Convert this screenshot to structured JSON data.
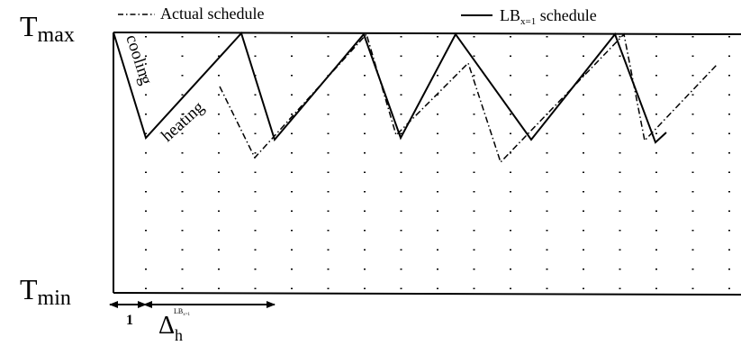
{
  "labels": {
    "t_max": "T",
    "t_max_sub": "max",
    "t_min": "T",
    "t_min_sub": "min",
    "cooling": "cooling",
    "heating": "heating",
    "one": "1",
    "delta": "Δ",
    "delta_sub": "h",
    "delta_sup": "LB",
    "delta_sup_sub": "x=1"
  },
  "legend": {
    "actual": "Actual schedule",
    "lb_prefix": "LB",
    "lb_sub": "x=1",
    "lb_suffix": " schedule"
  },
  "colors": {
    "ink": "#000000",
    "background": "#ffffff"
  }
}
